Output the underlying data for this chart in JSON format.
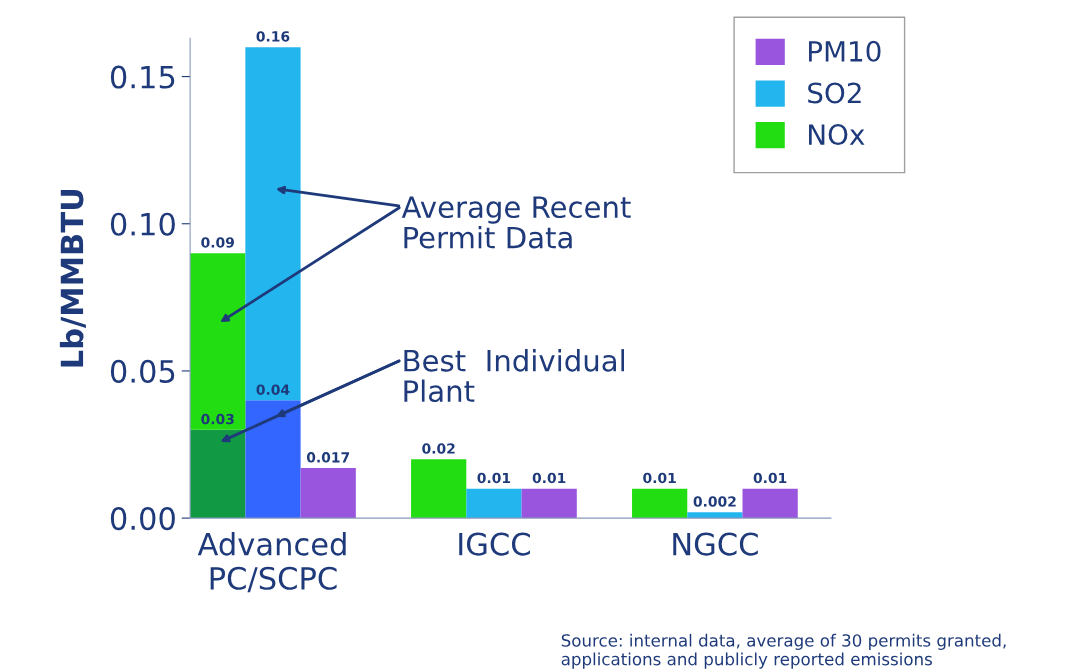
{
  "chart_data": {
    "type": "bar",
    "ylabel": "Lb/MMBTU",
    "stacked": true,
    "categories": [
      null,
      "Advanced\nPC/SCPC",
      null,
      null,
      null,
      "IGCC",
      null,
      null,
      null,
      "NGCC",
      null
    ],
    "series": [
      {
        "color": "#119944",
        "values": [
          0.03,
          null,
          null,
          null,
          null,
          null,
          null,
          null,
          null,
          null,
          null
        ],
        "value_labels": [
          "0.03",
          null,
          null,
          null,
          null,
          null,
          null,
          null,
          null,
          null,
          null
        ]
      },
      {
        "color": "#3366ff",
        "values": [
          null,
          0.04,
          null,
          null,
          null,
          null,
          null,
          null,
          null,
          null,
          null
        ],
        "value_labels": [
          null,
          "0.04",
          null,
          null,
          null,
          null,
          null,
          null,
          null,
          null,
          null
        ]
      },
      {
        "name": "NOx",
        "color": "#22dd11",
        "values": [
          0.06,
          null,
          null,
          null,
          0.02,
          null,
          null,
          null,
          0.01,
          null,
          null
        ]
      },
      {
        "name": "SO2",
        "color": "#22b5ee",
        "values": [
          null,
          0.12,
          null,
          null,
          null,
          0.01,
          null,
          null,
          null,
          0.002,
          null
        ]
      },
      {
        "name": "PM10",
        "color": "#9955dd",
        "values": [
          null,
          null,
          0.017,
          null,
          null,
          null,
          0.01,
          null,
          null,
          null,
          0.01
        ]
      }
    ],
    "totals": [
      "0.09",
      "0.16",
      "0.017",
      null,
      "0.02",
      "0.01",
      "0.01",
      null,
      "0.01",
      "0.002",
      "0.01"
    ],
    "ylim": [
      0,
      0.163
    ],
    "yticks": [
      {
        "value": 0,
        "label": "0.00"
      },
      {
        "value": 0.05,
        "label": "0.05"
      },
      {
        "value": 0.1,
        "label": "0.10"
      },
      {
        "value": 0.15,
        "label": "0.15"
      }
    ],
    "grid": false,
    "legend": "top right",
    "annotations": [
      "Average Recent\nPermit Data",
      "Best  Individual\nPlant",
      "Source: internal data, average of 30 permits granted, applications and publicly reported emissions"
    ]
  }
}
